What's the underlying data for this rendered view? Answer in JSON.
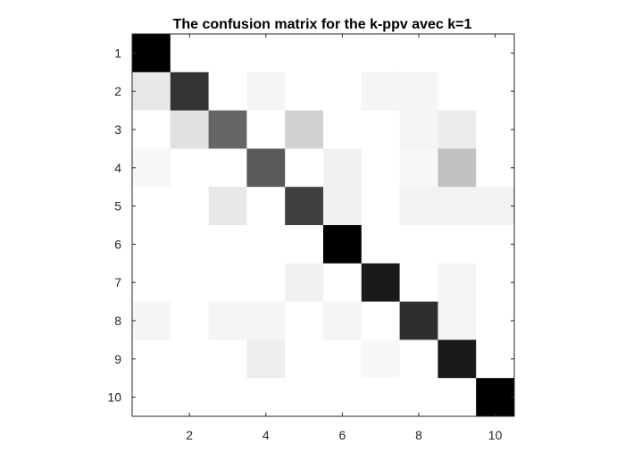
{
  "chart_data": {
    "type": "heatmap",
    "title": "The confusion matrix for the k-ppv avec k=1",
    "xlabel": "",
    "ylabel": "",
    "x_ticks": [
      "2",
      "4",
      "6",
      "8",
      "10"
    ],
    "y_ticks": [
      "1",
      "2",
      "3",
      "4",
      "5",
      "6",
      "7",
      "8",
      "9",
      "10"
    ],
    "xlim": [
      0.5,
      10.5
    ],
    "ylim": [
      0.5,
      10.5
    ],
    "colormap": "gray (reversed: higher = darker)",
    "grid": false,
    "rows": [
      "1",
      "2",
      "3",
      "4",
      "5",
      "6",
      "7",
      "8",
      "9",
      "10"
    ],
    "columns": [
      "1",
      "2",
      "3",
      "4",
      "5",
      "6",
      "7",
      "8",
      "9",
      "10"
    ],
    "values": [
      [
        1.0,
        0,
        0,
        0,
        0,
        0,
        0,
        0,
        0,
        0
      ],
      [
        0.09,
        0.8,
        0,
        0.04,
        0,
        0,
        0.04,
        0.04,
        0,
        0
      ],
      [
        0,
        0.12,
        0.6,
        0,
        0.18,
        0,
        0,
        0.04,
        0.08,
        0
      ],
      [
        0.03,
        0,
        0,
        0.65,
        0,
        0.06,
        0,
        0.03,
        0.24,
        0
      ],
      [
        0,
        0,
        0.09,
        0,
        0.75,
        0.06,
        0,
        0.05,
        0.05,
        0.05
      ],
      [
        0,
        0,
        0,
        0,
        0,
        1.0,
        0,
        0,
        0,
        0
      ],
      [
        0,
        0,
        0,
        0,
        0.06,
        0,
        0.9,
        0,
        0.04,
        0
      ],
      [
        0.04,
        0,
        0.04,
        0.04,
        0,
        0.04,
        0,
        0.82,
        0.04,
        0
      ],
      [
        0,
        0,
        0,
        0.07,
        0,
        0,
        0.03,
        0,
        0.9,
        0
      ],
      [
        0,
        0,
        0,
        0,
        0,
        0,
        0,
        0,
        0,
        1.0
      ]
    ]
  }
}
